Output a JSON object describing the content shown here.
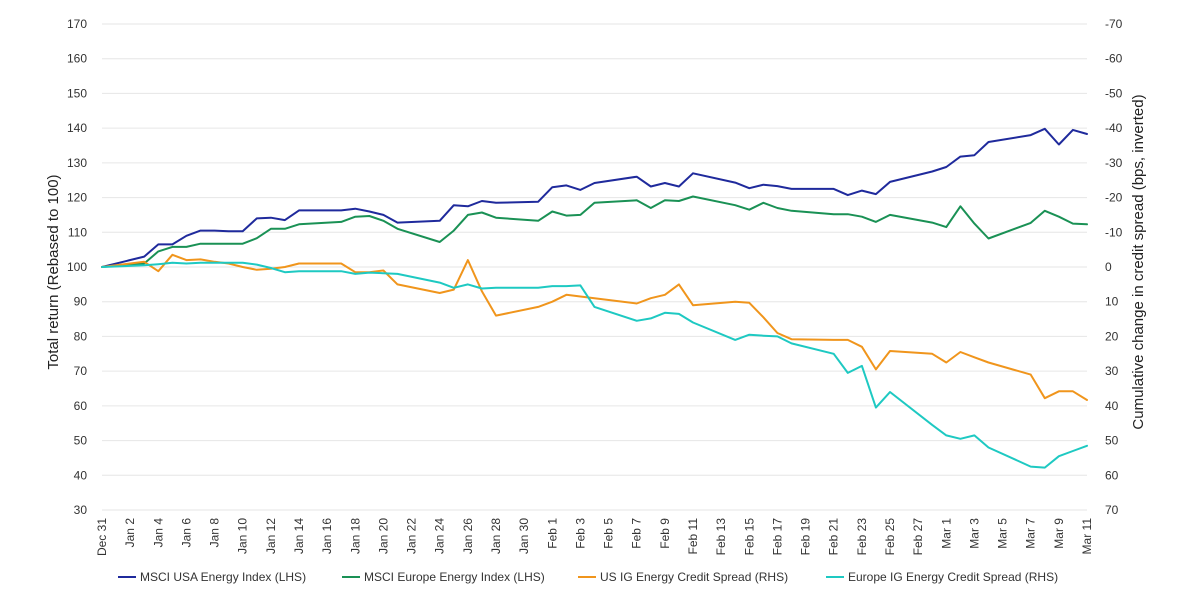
{
  "chart_data": {
    "type": "line",
    "ylabel_left": "Total return (Rebased to 100)",
    "ylabel_right": "Cumulative change in credit spread (bps, inverted)",
    "ylim_left": [
      30,
      170
    ],
    "ylim_right": [
      70,
      -70
    ],
    "yticks_left": [
      30,
      40,
      50,
      60,
      70,
      80,
      90,
      100,
      110,
      120,
      130,
      140,
      150,
      160,
      170
    ],
    "yticks_right": [
      70,
      60,
      50,
      40,
      30,
      20,
      10,
      0,
      -10,
      -20,
      -30,
      -40,
      -50,
      -60,
      -70
    ],
    "right_axis_inverted": true,
    "grid": true,
    "legend_position": "bottom",
    "x_tick_labels": [
      "Dec 31",
      "Jan 2",
      "Jan 4",
      "Jan 6",
      "Jan 8",
      "Jan 10",
      "Jan 12",
      "Jan 14",
      "Jan 16",
      "Jan 18",
      "Jan 20",
      "Jan 22",
      "Jan 24",
      "Jan 26",
      "Jan 28",
      "Jan 30",
      "Feb 1",
      "Feb 3",
      "Feb 5",
      "Feb 7",
      "Feb 9",
      "Feb 11",
      "Feb 13",
      "Feb 15",
      "Feb 17",
      "Feb 19",
      "Feb 21",
      "Feb 23",
      "Feb 25",
      "Feb 27",
      "Mar 1",
      "Mar 3",
      "Mar 5",
      "Mar 7",
      "Mar 9",
      "Mar 11"
    ],
    "x_day_offsets": [
      0,
      2,
      4,
      6,
      8,
      10,
      12,
      14,
      16,
      18,
      20,
      22,
      24,
      26,
      28,
      30,
      32,
      34,
      36,
      38,
      40,
      42,
      44,
      46,
      48,
      50,
      52,
      54,
      56,
      58,
      60,
      62,
      64,
      66,
      68,
      70
    ],
    "x_range": [
      0,
      70
    ],
    "series": [
      {
        "name": "MSCI USA Energy Index (LHS)",
        "axis": "left",
        "color": "#1f2a9c",
        "x": [
          0,
          3,
          4,
          5,
          6,
          7,
          8,
          9,
          10,
          11,
          12,
          13,
          14,
          17,
          18,
          19,
          20,
          21,
          24,
          25,
          26,
          27,
          28,
          31,
          32,
          33,
          34,
          35,
          38,
          39,
          40,
          41,
          42,
          45,
          46,
          47,
          48,
          49,
          52,
          53,
          54,
          55,
          56,
          59,
          60,
          61,
          62,
          63,
          66,
          67,
          68,
          69,
          70
        ],
        "values": [
          100,
          103,
          106.5,
          106.5,
          109,
          110.5,
          110.5,
          110.3,
          110.3,
          114,
          114.2,
          113.5,
          116.3,
          116.3,
          116.8,
          116,
          115,
          112.8,
          113.3,
          117.8,
          117.5,
          119,
          118.5,
          118.8,
          123,
          123.5,
          122.2,
          124.2,
          126,
          123.2,
          124.2,
          123.2,
          127,
          124.3,
          122.7,
          123.7,
          123.3,
          122.5,
          122.5,
          120.7,
          122,
          121,
          124.5,
          127.5,
          128.8,
          131.8,
          132.2,
          136,
          138,
          139.8,
          135.3,
          139.5,
          138.3
        ]
      },
      {
        "name": "MSCI Europe Energy Index (LHS)",
        "axis": "left",
        "color": "#1a9155",
        "x": [
          0,
          3,
          4,
          5,
          6,
          7,
          8,
          9,
          10,
          11,
          12,
          13,
          14,
          17,
          18,
          19,
          20,
          21,
          24,
          25,
          26,
          27,
          28,
          31,
          32,
          33,
          34,
          35,
          38,
          39,
          40,
          41,
          42,
          45,
          46,
          47,
          48,
          49,
          52,
          53,
          54,
          55,
          56,
          59,
          60,
          61,
          62,
          63,
          66,
          67,
          68,
          69,
          70
        ],
        "values": [
          100,
          101,
          104.5,
          105.8,
          105.8,
          106.7,
          106.7,
          106.7,
          106.7,
          108.3,
          111,
          111,
          112.3,
          113,
          114.5,
          114.7,
          113.3,
          111,
          107.2,
          110.5,
          115,
          115.7,
          114.2,
          113.3,
          116,
          114.8,
          115,
          118.5,
          119.2,
          117,
          119.2,
          119,
          120.3,
          117.8,
          116.5,
          118.5,
          117,
          116.2,
          115.2,
          115.2,
          114.5,
          113,
          115,
          112.8,
          111.5,
          117.5,
          112.5,
          108.2,
          112.7,
          116.2,
          114.5,
          112.5,
          112.3
        ]
      },
      {
        "name": "US IG Energy Credit Spread (RHS)",
        "axis": "right",
        "color": "#f0951c",
        "x": [
          0,
          3,
          4,
          5,
          6,
          7,
          8,
          9,
          10,
          11,
          12,
          13,
          14,
          17,
          18,
          19,
          20,
          21,
          24,
          25,
          26,
          27,
          28,
          31,
          32,
          33,
          34,
          35,
          38,
          39,
          40,
          41,
          42,
          45,
          46,
          47,
          48,
          49,
          52,
          53,
          54,
          55,
          56,
          59,
          60,
          61,
          62,
          63,
          66,
          67,
          68,
          69,
          70
        ],
        "values": [
          0,
          -1.5,
          1.2,
          -3.5,
          -2,
          -2.2,
          -1.5,
          -1,
          0,
          0.8,
          0.5,
          0,
          -1,
          -1,
          1.5,
          1.5,
          1,
          5,
          7.5,
          6.5,
          -2,
          7,
          14,
          11.5,
          10,
          8,
          8.5,
          9,
          10.5,
          9,
          8,
          5,
          11,
          10,
          10.3,
          14.5,
          19,
          20.8,
          21,
          21,
          23,
          29.5,
          24.2,
          25,
          27.5,
          24.5,
          26,
          27.5,
          31,
          37.8,
          35.8,
          35.8,
          38.3
        ]
      },
      {
        "name": "Europe IG Energy Credit Spread (RHS)",
        "axis": "right",
        "color": "#1ec9c2",
        "x": [
          0,
          3,
          4,
          5,
          6,
          7,
          8,
          9,
          10,
          11,
          12,
          13,
          14,
          17,
          18,
          19,
          20,
          21,
          24,
          25,
          26,
          27,
          28,
          31,
          32,
          33,
          34,
          35,
          38,
          39,
          40,
          41,
          42,
          45,
          46,
          47,
          48,
          49,
          52,
          53,
          54,
          55,
          56,
          59,
          60,
          61,
          62,
          63,
          66,
          67,
          68,
          69,
          70
        ],
        "values": [
          0,
          -0.5,
          -0.8,
          -1.2,
          -1,
          -1.2,
          -1.2,
          -1.2,
          -1.2,
          -0.7,
          0.3,
          1.5,
          1.2,
          1.2,
          2,
          1.6,
          1.8,
          2,
          4.5,
          6,
          5,
          6.2,
          6,
          6,
          5.5,
          5.5,
          5.3,
          11.5,
          15.5,
          14.8,
          13.2,
          13.5,
          16,
          21,
          19.5,
          19.8,
          20,
          22,
          25,
          30.5,
          28.5,
          40.5,
          36,
          45.5,
          48.5,
          49.5,
          48.5,
          52,
          57.5,
          57.8,
          54.5,
          53,
          51.5
        ]
      }
    ]
  }
}
